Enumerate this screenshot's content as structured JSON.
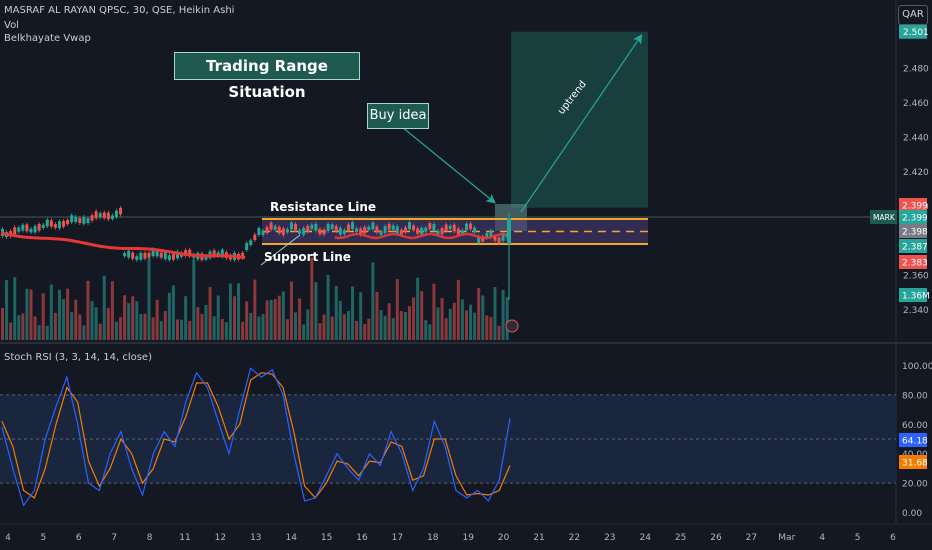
{
  "symbol_line": "MASRAF AL RAYAN QPSC, 30, QSE, Heikin Ashi",
  "vol_label": "Vol",
  "vwap_label": "Belkhayate Vwap",
  "rsi_label": "Stoch RSI (3, 3, 14, 14, close)",
  "currency": "QAR",
  "annotations": {
    "title": "Trading Range Situation",
    "buy": "Buy idea",
    "resistance": "Resistance Line",
    "support": "Support Line",
    "uptrend": "uptrend"
  },
  "colors": {
    "up": "#26a69a",
    "down": "#ef5350",
    "vwap": "#e53935",
    "range_border": "#f5a623",
    "range_fill": "#4a3d7a",
    "target_fill": "#1e5e56",
    "rsi_k": "#2962ff",
    "rsi_d": "#f57c00"
  },
  "chart_data": [
    {
      "type": "candlestick",
      "name": "price",
      "y_ticks": [
        "2.340",
        "2.360",
        "2.400",
        "2.420",
        "2.440",
        "2.460",
        "2.480",
        "2.501"
      ],
      "ylim": [
        2.331,
        2.502
      ],
      "price_labels": [
        {
          "value": "2.501",
          "color": "#26a69a"
        },
        {
          "value": "2.399",
          "color": "#ef5350"
        },
        {
          "value": "2.399",
          "color": "#26a69a",
          "tag": "MARK"
        },
        {
          "value": "2.398",
          "color": "#787b86"
        },
        {
          "value": "2.387",
          "color": "#26a69a"
        },
        {
          "value": "2.383",
          "color": "#ef5350"
        },
        {
          "value": "1.36M",
          "color": "#26a69a"
        }
      ],
      "range": {
        "high": 2.399,
        "low": 2.386,
        "mid": 2.3925
      },
      "target_zone": {
        "low": 2.399,
        "high": 2.501
      },
      "x_ticks": [
        "4",
        "5",
        "6",
        "7",
        "8",
        "11",
        "12",
        "13",
        "14",
        "15",
        "16",
        "17",
        "18",
        "19",
        "20",
        "21",
        "22",
        "23",
        "24",
        "25",
        "26",
        "27",
        "Mar",
        "4",
        "5",
        "6"
      ]
    },
    {
      "type": "line",
      "name": "stoch-rsi",
      "y_ticks": [
        "100.00",
        "80.00",
        "60.00",
        "40.00",
        "20.00",
        "0.00"
      ],
      "ylim": [
        -5,
        105
      ],
      "bands": [
        20,
        50,
        80
      ],
      "last_values": [
        {
          "value": "64.18",
          "color": "#2962ff"
        },
        {
          "value": "31.68",
          "color": "#f57c00"
        }
      ],
      "k_values": [
        58,
        30,
        5,
        15,
        50,
        72,
        92,
        60,
        20,
        15,
        40,
        55,
        30,
        12,
        40,
        55,
        45,
        75,
        95,
        85,
        62,
        40,
        70,
        98,
        92,
        97,
        80,
        40,
        8,
        10,
        25,
        40,
        30,
        22,
        40,
        32,
        55,
        40,
        15,
        30,
        62,
        45,
        15,
        10,
        15,
        8,
        22,
        64
      ],
      "d_values": [
        62,
        45,
        15,
        10,
        30,
        60,
        85,
        75,
        35,
        18,
        30,
        50,
        40,
        20,
        30,
        50,
        48,
        65,
        88,
        88,
        72,
        50,
        60,
        90,
        95,
        94,
        85,
        55,
        18,
        10,
        20,
        35,
        33,
        25,
        35,
        34,
        48,
        45,
        22,
        25,
        50,
        50,
        25,
        12,
        13,
        12,
        15,
        32
      ]
    }
  ]
}
